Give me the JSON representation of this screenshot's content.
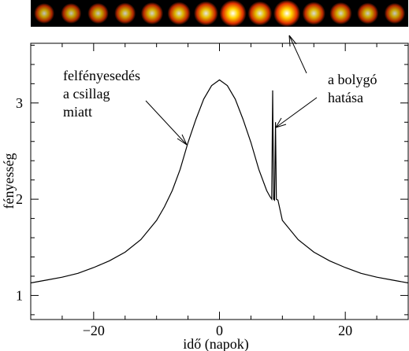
{
  "colors": {
    "strip_background": "#000000",
    "spot_core": "#ffffff",
    "spot_mid": "#ffd400",
    "spot_outer": "#e03000",
    "curve": "#000000"
  },
  "strip": {
    "spots": [
      {
        "intensity": 0.55
      },
      {
        "intensity": 0.55
      },
      {
        "intensity": 0.58
      },
      {
        "intensity": 0.62
      },
      {
        "intensity": 0.68
      },
      {
        "intensity": 0.74
      },
      {
        "intensity": 0.82
      },
      {
        "intensity": 1.0
      },
      {
        "intensity": 0.82
      },
      {
        "intensity": 1.0
      },
      {
        "intensity": 0.74
      },
      {
        "intensity": 0.68
      },
      {
        "intensity": 0.62
      },
      {
        "intensity": 0.58
      }
    ]
  },
  "chart_data": {
    "type": "line",
    "title": "",
    "xlabel": "idő (napok)",
    "ylabel": "fényesség",
    "xlim": [
      -30,
      30
    ],
    "ylim": [
      0.75,
      3.62
    ],
    "x_ticks": [
      {
        "value": -20,
        "label": "−20"
      },
      {
        "value": 0,
        "label": "0"
      },
      {
        "value": 20,
        "label": "20"
      }
    ],
    "y_ticks": [
      {
        "value": 1,
        "label": "1"
      },
      {
        "value": 2,
        "label": "2"
      },
      {
        "value": 3,
        "label": "3"
      }
    ],
    "grid": false,
    "series": [
      {
        "points": [
          [
            -30,
            1.13
          ],
          [
            -27.5,
            1.16
          ],
          [
            -25,
            1.19
          ],
          [
            -22.5,
            1.23
          ],
          [
            -20,
            1.29
          ],
          [
            -17.5,
            1.36
          ],
          [
            -15,
            1.45
          ],
          [
            -12.5,
            1.58
          ],
          [
            -10,
            1.78
          ],
          [
            -8.75,
            1.92
          ],
          [
            -7.5,
            2.09
          ],
          [
            -6.25,
            2.31
          ],
          [
            -5,
            2.59
          ],
          [
            -3.75,
            2.83
          ],
          [
            -2.5,
            3.04
          ],
          [
            -1.25,
            3.18
          ],
          [
            0,
            3.24
          ],
          [
            1.25,
            3.18
          ],
          [
            2.5,
            3.04
          ],
          [
            3.75,
            2.83
          ],
          [
            5,
            2.59
          ],
          [
            6.25,
            2.31
          ],
          [
            7.5,
            2.09
          ],
          [
            8.0,
            2.03
          ],
          [
            8.3,
            2.0
          ],
          [
            8.45,
            3.13
          ],
          [
            8.6,
            2.0
          ],
          [
            8.75,
            1.99
          ],
          [
            8.9,
            2.8
          ],
          [
            9.05,
            2.0
          ],
          [
            9.3,
            1.99
          ],
          [
            10,
            1.78
          ],
          [
            12.5,
            1.58
          ],
          [
            15,
            1.45
          ],
          [
            17.5,
            1.36
          ],
          [
            20,
            1.29
          ],
          [
            22.5,
            1.23
          ],
          [
            25,
            1.19
          ],
          [
            27.5,
            1.16
          ],
          [
            30,
            1.13
          ]
        ]
      }
    ],
    "annotations": [
      {
        "lines": [
          "felfényesedés",
          "a csillag",
          "miatt"
        ],
        "target": [
          -5,
          2.6
        ]
      },
      {
        "lines": [
          "a bolygó",
          "hatása"
        ],
        "target": [
          8.9,
          2.8
        ]
      }
    ]
  }
}
